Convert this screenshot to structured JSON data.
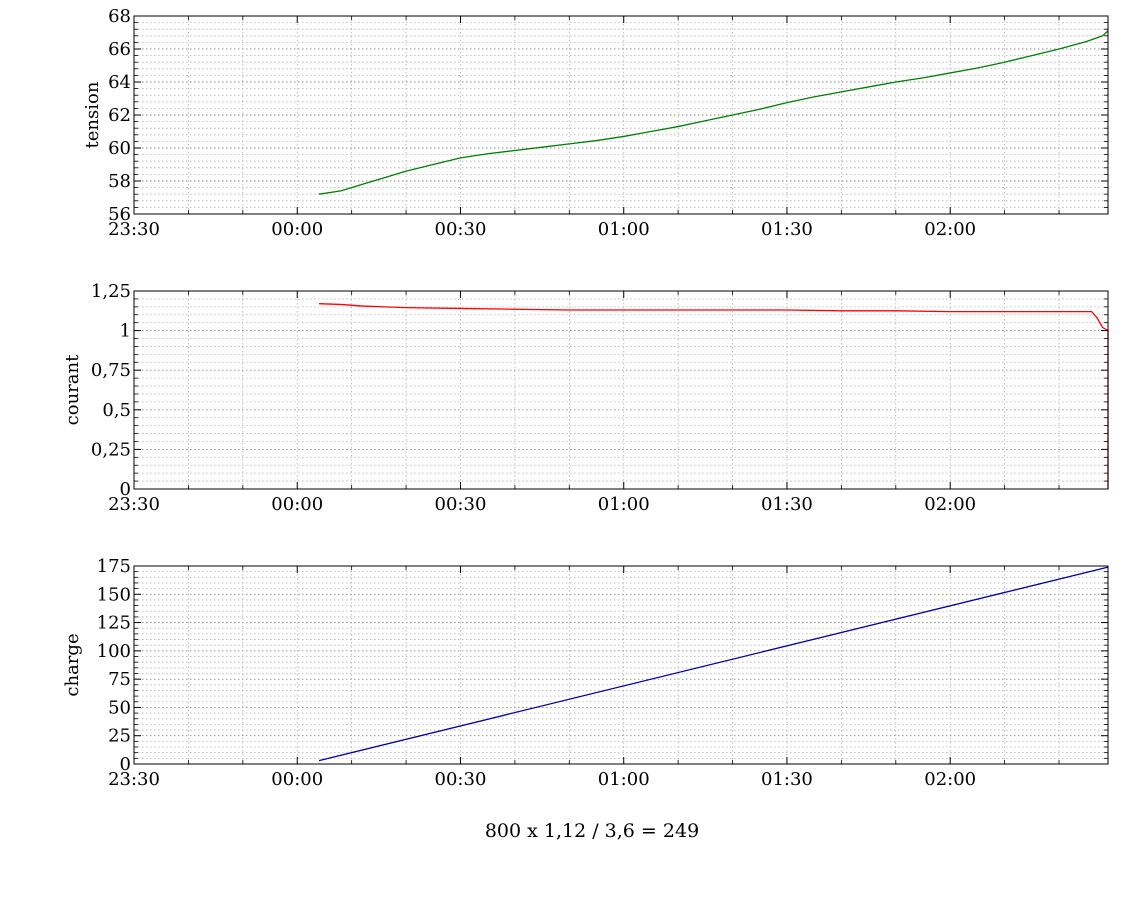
{
  "chart_data": [
    {
      "type": "line",
      "ylabel": "tension",
      "xlabel": "",
      "x_ticks": [
        "23:30",
        "00:00",
        "00:30",
        "01:00",
        "01:30",
        "02:00"
      ],
      "xlim": [
        "23:30",
        "02:29"
      ],
      "ylim": [
        56,
        68
      ],
      "y_ticks": [
        "56",
        "58",
        "60",
        "62",
        "64",
        "66",
        "68"
      ],
      "grid": true,
      "color": "#008000",
      "series": [
        {
          "x": [
            "00:04",
            "00:08",
            "00:12",
            "00:16",
            "00:20",
            "00:25",
            "00:30",
            "00:35",
            "00:40",
            "00:45",
            "00:50",
            "00:55",
            "01:00",
            "01:05",
            "01:10",
            "01:15",
            "01:20",
            "01:25",
            "01:30",
            "01:35",
            "01:40",
            "01:45",
            "01:50",
            "01:55",
            "02:00",
            "02:05",
            "02:10",
            "02:15",
            "02:20",
            "02:25",
            "02:28",
            "02:29"
          ],
          "values": [
            57.2,
            57.4,
            57.8,
            58.2,
            58.6,
            59.0,
            59.4,
            59.65,
            59.85,
            60.05,
            60.25,
            60.45,
            60.7,
            61.0,
            61.3,
            61.65,
            62.0,
            62.35,
            62.75,
            63.1,
            63.4,
            63.7,
            64.0,
            64.25,
            64.55,
            64.85,
            65.2,
            65.6,
            66.0,
            66.45,
            66.8,
            67.1
          ]
        }
      ]
    },
    {
      "type": "line",
      "ylabel": "courant",
      "xlabel": "",
      "x_ticks": [
        "23:30",
        "00:00",
        "00:30",
        "01:00",
        "01:30",
        "02:00"
      ],
      "xlim": [
        "23:30",
        "02:29"
      ],
      "ylim": [
        0,
        1.25
      ],
      "y_ticks": [
        "0",
        "0,25",
        "0,5",
        "0,75",
        "1",
        "1,25"
      ],
      "grid": true,
      "color": "#ff0000",
      "series": [
        {
          "x": [
            "00:04",
            "00:08",
            "00:12",
            "00:20",
            "00:30",
            "00:40",
            "00:50",
            "01:00",
            "01:10",
            "01:20",
            "01:30",
            "01:40",
            "01:50",
            "02:00",
            "02:10",
            "02:20",
            "02:26",
            "02:27",
            "02:28",
            "02:29",
            "02:29"
          ],
          "values": [
            1.17,
            1.165,
            1.155,
            1.145,
            1.14,
            1.135,
            1.13,
            1.13,
            1.13,
            1.13,
            1.13,
            1.125,
            1.125,
            1.12,
            1.12,
            1.12,
            1.12,
            1.08,
            1.02,
            1.0,
            0
          ]
        }
      ]
    },
    {
      "type": "line",
      "ylabel": "charge",
      "xlabel": "",
      "x_ticks": [
        "23:30",
        "00:00",
        "00:30",
        "01:00",
        "01:30",
        "02:00"
      ],
      "xlim": [
        "23:30",
        "02:29"
      ],
      "ylim": [
        0,
        175
      ],
      "y_ticks": [
        "0",
        "25",
        "50",
        "75",
        "100",
        "125",
        "150",
        "175"
      ],
      "grid": true,
      "color": "#0000aa",
      "series": [
        {
          "x": [
            "00:04",
            "02:29"
          ],
          "values": [
            3,
            174
          ]
        }
      ]
    }
  ],
  "caption": "800 x 1,12 / 3,6 = 249"
}
